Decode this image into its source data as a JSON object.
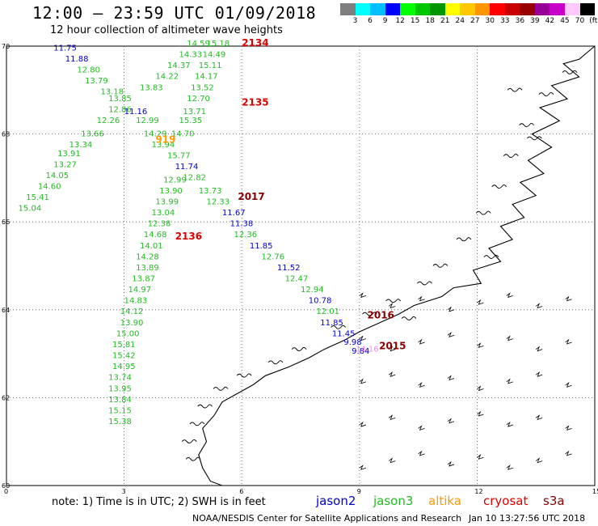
{
  "header": {
    "title": "12:00 — 23:59 UTC 01/09/2018",
    "subtitle": "12 hour collection of altimeter wave heights"
  },
  "colorbar": {
    "colors": [
      "#7f7f7f",
      "#00ffff",
      "#00bfff",
      "#0000ff",
      "#00ff00",
      "#00c800",
      "#009600",
      "#ffff00",
      "#ffc800",
      "#ff9600",
      "#ff0000",
      "#c80000",
      "#960000",
      "#960096",
      "#c800c8",
      "#ffc8ff",
      "#000000"
    ],
    "labels": [
      "3",
      "6",
      "9",
      "12",
      "15",
      "18",
      "21",
      "24",
      "27",
      "30",
      "33",
      "36",
      "39",
      "42",
      "45",
      "70",
      "(ft)"
    ]
  },
  "axes": {
    "lat_labels": [
      "70",
      "68",
      "66",
      "64",
      "62",
      "60"
    ],
    "lon_labels": [
      "0",
      "3",
      "6",
      "9",
      "12",
      "15"
    ]
  },
  "colors": {
    "jason2": "#0000cc",
    "jason3": "#22bb22",
    "altika": "#ff9900",
    "cryosat": "#dd0000",
    "s3a": "#880000",
    "pink": "#ff88ff"
  },
  "track_labels": [
    {
      "text": "2134",
      "color": "cryosat",
      "lon": 6.0,
      "lat": 70.0
    },
    {
      "text": "2135",
      "color": "cryosat",
      "lon": 6.0,
      "lat": 68.65
    },
    {
      "text": "919",
      "color": "altika",
      "lon": 3.8,
      "lat": 67.8
    },
    {
      "text": "2017",
      "color": "s3a",
      "lon": 5.9,
      "lat": 66.5
    },
    {
      "text": "2136",
      "color": "cryosat",
      "lon": 4.3,
      "lat": 65.6
    },
    {
      "text": "2016",
      "color": "s3a",
      "lon": 9.2,
      "lat": 63.8
    },
    {
      "text": "2015",
      "color": "s3a",
      "lon": 9.5,
      "lat": 63.1
    }
  ],
  "swh_labels": [
    {
      "v": "11.75",
      "c": "jason2",
      "lon": 1.2,
      "lat": 69.9
    },
    {
      "v": "11.88",
      "c": "jason2",
      "lon": 1.5,
      "lat": 69.65
    },
    {
      "v": "12.80",
      "c": "jason3",
      "lon": 1.8,
      "lat": 69.4
    },
    {
      "v": "13.79",
      "c": "jason3",
      "lon": 2.0,
      "lat": 69.15
    },
    {
      "v": "13.18",
      "c": "jason3",
      "lon": 2.4,
      "lat": 68.9
    },
    {
      "v": "13.85",
      "c": "jason3",
      "lon": 2.6,
      "lat": 68.75
    },
    {
      "v": "12.86",
      "c": "jason3",
      "lon": 2.6,
      "lat": 68.5
    },
    {
      "v": "11.16",
      "c": "jason2",
      "lon": 3.0,
      "lat": 68.45
    },
    {
      "v": "12.26",
      "c": "jason3",
      "lon": 2.3,
      "lat": 68.25
    },
    {
      "v": "13.66",
      "c": "jason3",
      "lon": 1.9,
      "lat": 67.95
    },
    {
      "v": "13.34",
      "c": "jason3",
      "lon": 1.6,
      "lat": 67.7
    },
    {
      "v": "13.91",
      "c": "jason3",
      "lon": 1.3,
      "lat": 67.5
    },
    {
      "v": "13.27",
      "c": "jason3",
      "lon": 1.2,
      "lat": 67.25
    },
    {
      "v": "14.05",
      "c": "jason3",
      "lon": 1.0,
      "lat": 67.0
    },
    {
      "v": "14.60",
      "c": "jason3",
      "lon": 0.8,
      "lat": 66.75
    },
    {
      "v": "15.41",
      "c": "jason3",
      "lon": 0.5,
      "lat": 66.5
    },
    {
      "v": "15.04",
      "c": "jason3",
      "lon": 0.3,
      "lat": 66.25
    },
    {
      "v": "14.59",
      "c": "jason3",
      "lon": 4.6,
      "lat": 70.0
    },
    {
      "v": "15.18",
      "c": "jason3",
      "lon": 5.1,
      "lat": 70.0
    },
    {
      "v": "14.33",
      "c": "jason3",
      "lon": 4.4,
      "lat": 69.75
    },
    {
      "v": "14.49",
      "c": "jason3",
      "lon": 5.0,
      "lat": 69.75
    },
    {
      "v": "14.37",
      "c": "jason3",
      "lon": 4.1,
      "lat": 69.5
    },
    {
      "v": "15.11",
      "c": "jason3",
      "lon": 4.9,
      "lat": 69.5
    },
    {
      "v": "14.22",
      "c": "jason3",
      "lon": 3.8,
      "lat": 69.25
    },
    {
      "v": "14.17",
      "c": "jason3",
      "lon": 4.8,
      "lat": 69.25
    },
    {
      "v": "13.83",
      "c": "jason3",
      "lon": 3.4,
      "lat": 69.0
    },
    {
      "v": "13.52",
      "c": "jason3",
      "lon": 4.7,
      "lat": 69.0
    },
    {
      "v": "12.70",
      "c": "jason3",
      "lon": 4.6,
      "lat": 68.75
    },
    {
      "v": "13.71",
      "c": "jason3",
      "lon": 4.5,
      "lat": 68.45
    },
    {
      "v": "12.99",
      "c": "jason3",
      "lon": 3.3,
      "lat": 68.25
    },
    {
      "v": "15.35",
      "c": "jason3",
      "lon": 4.4,
      "lat": 68.25
    },
    {
      "v": "14.29",
      "c": "jason3",
      "lon": 3.5,
      "lat": 67.95
    },
    {
      "v": "14.70",
      "c": "jason3",
      "lon": 4.2,
      "lat": 67.95
    },
    {
      "v": "13.94",
      "c": "jason3",
      "lon": 3.7,
      "lat": 67.7
    },
    {
      "v": "15.77",
      "c": "jason3",
      "lon": 4.1,
      "lat": 67.45
    },
    {
      "v": "11.74",
      "c": "jason2",
      "lon": 4.3,
      "lat": 67.2
    },
    {
      "v": "12.82",
      "c": "jason3",
      "lon": 4.5,
      "lat": 66.95
    },
    {
      "v": "12.99",
      "c": "jason3",
      "lon": 4.0,
      "lat": 66.9
    },
    {
      "v": "13.90",
      "c": "jason3",
      "lon": 3.9,
      "lat": 66.65
    },
    {
      "v": "13.73",
      "c": "jason3",
      "lon": 4.9,
      "lat": 66.65
    },
    {
      "v": "13.99",
      "c": "jason3",
      "lon": 3.8,
      "lat": 66.4
    },
    {
      "v": "12.33",
      "c": "jason3",
      "lon": 5.1,
      "lat": 66.4
    },
    {
      "v": "13.04",
      "c": "jason3",
      "lon": 3.7,
      "lat": 66.15
    },
    {
      "v": "11.67",
      "c": "jason2",
      "lon": 5.5,
      "lat": 66.15
    },
    {
      "v": "12.38",
      "c": "jason3",
      "lon": 3.6,
      "lat": 65.9
    },
    {
      "v": "11.38",
      "c": "jason2",
      "lon": 5.7,
      "lat": 65.9
    },
    {
      "v": "14.68",
      "c": "jason3",
      "lon": 3.5,
      "lat": 65.65
    },
    {
      "v": "12.36",
      "c": "jason3",
      "lon": 5.8,
      "lat": 65.65
    },
    {
      "v": "14.01",
      "c": "jason3",
      "lon": 3.4,
      "lat": 65.4
    },
    {
      "v": "11.85",
      "c": "jason2",
      "lon": 6.2,
      "lat": 65.4
    },
    {
      "v": "14.28",
      "c": "jason3",
      "lon": 3.3,
      "lat": 65.15
    },
    {
      "v": "12.76",
      "c": "jason3",
      "lon": 6.5,
      "lat": 65.15
    },
    {
      "v": "13.89",
      "c": "jason3",
      "lon": 3.3,
      "lat": 64.9
    },
    {
      "v": "11.52",
      "c": "jason2",
      "lon": 6.9,
      "lat": 64.9
    },
    {
      "v": "13.87",
      "c": "jason3",
      "lon": 3.2,
      "lat": 64.65
    },
    {
      "v": "12.47",
      "c": "jason3",
      "lon": 7.1,
      "lat": 64.65
    },
    {
      "v": "14.97",
      "c": "jason3",
      "lon": 3.1,
      "lat": 64.4
    },
    {
      "v": "12.94",
      "c": "jason3",
      "lon": 7.5,
      "lat": 64.4
    },
    {
      "v": "14.83",
      "c": "jason3",
      "lon": 3.0,
      "lat": 64.15
    },
    {
      "v": "10.78",
      "c": "jason2",
      "lon": 7.7,
      "lat": 64.15
    },
    {
      "v": "14.12",
      "c": "jason3",
      "lon": 2.9,
      "lat": 63.9
    },
    {
      "v": "12.01",
      "c": "jason3",
      "lon": 7.9,
      "lat": 63.9
    },
    {
      "v": "13.90",
      "c": "jason3",
      "lon": 2.9,
      "lat": 63.65
    },
    {
      "v": "11.85",
      "c": "jason2",
      "lon": 8.0,
      "lat": 63.65
    },
    {
      "v": "15.00",
      "c": "jason3",
      "lon": 2.8,
      "lat": 63.4
    },
    {
      "v": "11.45",
      "c": "jason2",
      "lon": 8.3,
      "lat": 63.4
    },
    {
      "v": "15.81",
      "c": "jason3",
      "lon": 2.7,
      "lat": 63.15
    },
    {
      "v": "9.98",
      "c": "jason2",
      "lon": 8.6,
      "lat": 63.2
    },
    {
      "v": "15.42",
      "c": "jason3",
      "lon": 2.7,
      "lat": 62.9
    },
    {
      "v": "9.84",
      "c": "jason2",
      "lon": 8.8,
      "lat": 63.0
    },
    {
      "v": "14.95",
      "c": "jason3",
      "lon": 2.7,
      "lat": 62.65
    },
    {
      "v": "13.74",
      "c": "jason3",
      "lon": 2.6,
      "lat": 62.4
    },
    {
      "v": "13.95",
      "c": "jason3",
      "lon": 2.6,
      "lat": 62.15
    },
    {
      "v": "13.84",
      "c": "jason3",
      "lon": 2.6,
      "lat": 61.9
    },
    {
      "v": "15.15",
      "c": "jason3",
      "lon": 2.6,
      "lat": 61.65
    },
    {
      "v": "15.38",
      "c": "jason3",
      "lon": 2.6,
      "lat": 61.4
    },
    {
      "v": "14.16",
      "c": "pink",
      "lon": 8.9,
      "lat": 63.05
    }
  ],
  "footer": {
    "note": "note:  1) Time is in UTC;  2) SWH is in feet",
    "legend": [
      {
        "text": "jason2",
        "color": "#0000cc",
        "left": 391
      },
      {
        "text": "jason3",
        "color": "#22bb22",
        "left": 462
      },
      {
        "text": "altika",
        "color": "#ff9900",
        "left": 530
      },
      {
        "text": "cryosat",
        "color": "#dd0000",
        "left": 598
      },
      {
        "text": "s3a",
        "color": "#880000",
        "left": 672
      }
    ],
    "credit": "NOAA/NESDIS Center for Satellite Applications and Research",
    "timestamp": "Jan 10 13:27:56 UTC 2018"
  }
}
